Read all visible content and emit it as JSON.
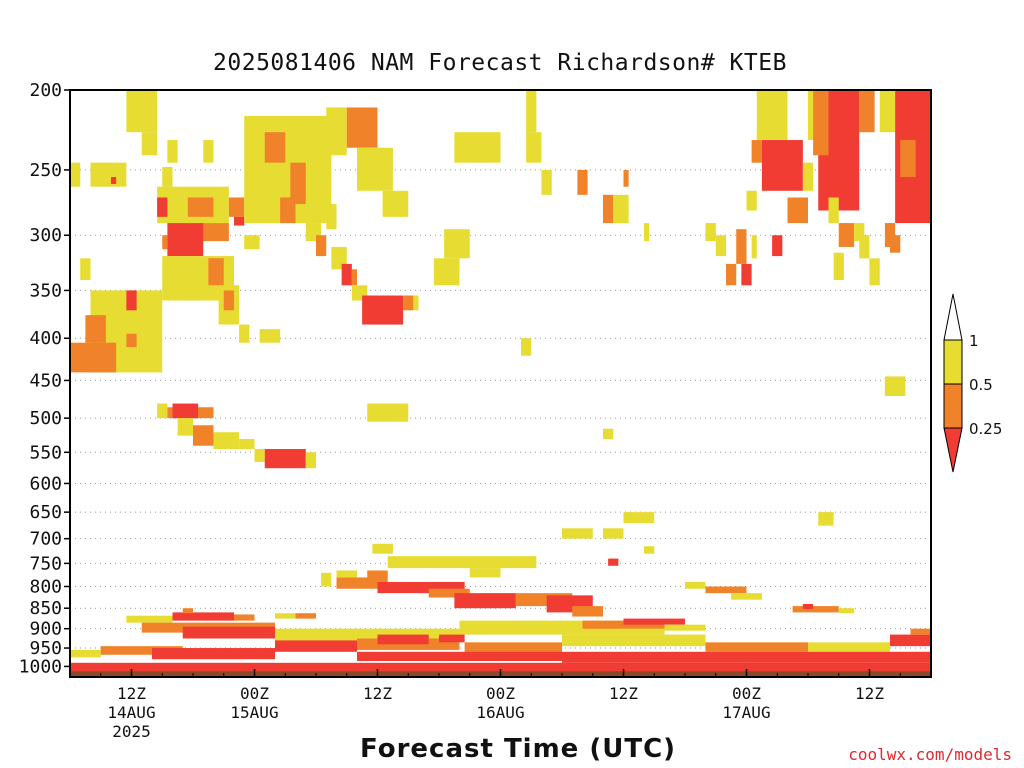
{
  "chart_data": {
    "type": "heatmap",
    "title": "2025081406 NAM Forecast Richardson# KTEB",
    "xlabel": "Forecast Time (UTC)",
    "ylabel": "",
    "x_unit": "forecast hour from 2025-08-14 06Z",
    "xlim": [
      0,
      84
    ],
    "y_unit": "pressure (hPa)",
    "ylim": [
      1030,
      200
    ],
    "y_scale": "log-pressure",
    "yticks": [
      200,
      250,
      300,
      350,
      400,
      450,
      500,
      550,
      600,
      650,
      700,
      750,
      800,
      850,
      900,
      950,
      1000
    ],
    "xticks": [
      {
        "hour": 6,
        "lines": [
          "12Z",
          "14AUG",
          "2025"
        ]
      },
      {
        "hour": 18,
        "lines": [
          "00Z",
          "15AUG"
        ]
      },
      {
        "hour": 30,
        "lines": [
          "12Z"
        ]
      },
      {
        "hour": 42,
        "lines": [
          "00Z",
          "16AUG"
        ]
      },
      {
        "hour": 54,
        "lines": [
          "12Z"
        ]
      },
      {
        "hour": 66,
        "lines": [
          "00Z",
          "17AUG"
        ]
      },
      {
        "hour": 78,
        "lines": [
          "12Z"
        ]
      }
    ],
    "grid": "horizontal dotted at y ticks",
    "legend": {
      "placement": "right",
      "labels": [
        "1",
        "0.5",
        "0.25"
      ],
      "bins": [
        {
          "range": "0.5-1",
          "color": "#e6dc32"
        },
        {
          "range": "0.25-0.5",
          "color": "#f0822a"
        },
        {
          "range": "<0.25",
          "color": "#f03c32"
        }
      ]
    },
    "colors": {
      "low": "#f03c32",
      "mid": "#f0822a",
      "high": "#e6dc32",
      "ground": "#8b4a25"
    },
    "ground_pressure": 1013,
    "cells": [
      {
        "t0": 5.5,
        "t1": 8.5,
        "p0": 200,
        "p1": 225,
        "bin": "high"
      },
      {
        "t0": 7.0,
        "t1": 8.5,
        "p0": 225,
        "p1": 240,
        "bin": "high"
      },
      {
        "t0": 9.5,
        "t1": 10.5,
        "p0": 230,
        "p1": 245,
        "bin": "high"
      },
      {
        "t0": 13.0,
        "t1": 14.0,
        "p0": 230,
        "p1": 245,
        "bin": "high"
      },
      {
        "t0": 0.0,
        "t1": 1.0,
        "p0": 245,
        "p1": 262,
        "bin": "high"
      },
      {
        "t0": 2.0,
        "t1": 5.5,
        "p0": 245,
        "p1": 262,
        "bin": "high"
      },
      {
        "t0": 9.0,
        "t1": 10.0,
        "p0": 248,
        "p1": 262,
        "bin": "high"
      },
      {
        "t0": 4.0,
        "t1": 4.5,
        "p0": 255,
        "p1": 260,
        "bin": "low"
      },
      {
        "t0": 8.5,
        "t1": 15.5,
        "p0": 262,
        "p1": 290,
        "bin": "high"
      },
      {
        "t0": 8.5,
        "t1": 9.5,
        "p0": 270,
        "p1": 285,
        "bin": "low"
      },
      {
        "t0": 11.5,
        "t1": 14.0,
        "p0": 270,
        "p1": 285,
        "bin": "mid"
      },
      {
        "t0": 15.5,
        "t1": 17.0,
        "p0": 270,
        "p1": 285,
        "bin": "mid"
      },
      {
        "t0": 16.0,
        "t1": 17.0,
        "p0": 285,
        "p1": 292,
        "bin": "low"
      },
      {
        "t0": 12.5,
        "t1": 15.5,
        "p0": 290,
        "p1": 305,
        "bin": "mid"
      },
      {
        "t0": 9.0,
        "t1": 9.5,
        "p0": 300,
        "p1": 312,
        "bin": "mid"
      },
      {
        "t0": 9.5,
        "t1": 13.0,
        "p0": 290,
        "p1": 318,
        "bin": "low"
      },
      {
        "t0": 9.0,
        "t1": 16.0,
        "p0": 318,
        "p1": 360,
        "bin": "high"
      },
      {
        "t0": 13.5,
        "t1": 15.0,
        "p0": 320,
        "p1": 345,
        "bin": "mid"
      },
      {
        "t0": 14.5,
        "t1": 16.5,
        "p0": 345,
        "p1": 385,
        "bin": "high"
      },
      {
        "t0": 15.0,
        "t1": 16.0,
        "p0": 350,
        "p1": 370,
        "bin": "mid"
      },
      {
        "t0": 17.0,
        "t1": 18.5,
        "p0": 300,
        "p1": 312,
        "bin": "high"
      },
      {
        "t0": 2.0,
        "t1": 9.0,
        "p0": 350,
        "p1": 440,
        "bin": "high"
      },
      {
        "t0": 1.5,
        "t1": 3.5,
        "p0": 375,
        "p1": 405,
        "bin": "mid"
      },
      {
        "t0": 0.0,
        "t1": 4.5,
        "p0": 405,
        "p1": 440,
        "bin": "mid"
      },
      {
        "t0": 5.5,
        "t1": 6.5,
        "p0": 350,
        "p1": 370,
        "bin": "low"
      },
      {
        "t0": 5.5,
        "t1": 6.5,
        "p0": 395,
        "p1": 410,
        "bin": "mid"
      },
      {
        "t0": 1.0,
        "t1": 2.0,
        "p0": 320,
        "p1": 340,
        "bin": "high"
      },
      {
        "t0": 18.5,
        "t1": 20.5,
        "p0": 390,
        "p1": 405,
        "bin": "high"
      },
      {
        "t0": 16.5,
        "t1": 17.5,
        "p0": 385,
        "p1": 405,
        "bin": "high"
      },
      {
        "t0": 17.0,
        "t1": 25.5,
        "p0": 215,
        "p1": 290,
        "bin": "high"
      },
      {
        "t0": 19.0,
        "t1": 21.0,
        "p0": 225,
        "p1": 245,
        "bin": "mid"
      },
      {
        "t0": 21.5,
        "t1": 23.0,
        "p0": 245,
        "p1": 275,
        "bin": "mid"
      },
      {
        "t0": 20.5,
        "t1": 22.0,
        "p0": 270,
        "p1": 290,
        "bin": "mid"
      },
      {
        "t0": 23.0,
        "t1": 24.5,
        "p0": 290,
        "p1": 305,
        "bin": "high"
      },
      {
        "t0": 24.0,
        "t1": 25.0,
        "p0": 300,
        "p1": 318,
        "bin": "mid"
      },
      {
        "t0": 25.0,
        "t1": 26.0,
        "p0": 275,
        "p1": 295,
        "bin": "high"
      },
      {
        "t0": 25.0,
        "t1": 27.0,
        "p0": 210,
        "p1": 240,
        "bin": "high"
      },
      {
        "t0": 27.0,
        "t1": 30.0,
        "p0": 210,
        "p1": 235,
        "bin": "mid"
      },
      {
        "t0": 28.0,
        "t1": 31.5,
        "p0": 235,
        "p1": 265,
        "bin": "high"
      },
      {
        "t0": 30.5,
        "t1": 33.0,
        "p0": 265,
        "p1": 285,
        "bin": "high"
      },
      {
        "t0": 25.5,
        "t1": 27.0,
        "p0": 310,
        "p1": 330,
        "bin": "high"
      },
      {
        "t0": 26.5,
        "t1": 27.5,
        "p0": 325,
        "p1": 345,
        "bin": "low"
      },
      {
        "t0": 27.5,
        "t1": 28.0,
        "p0": 330,
        "p1": 345,
        "bin": "mid"
      },
      {
        "t0": 27.5,
        "t1": 29.0,
        "p0": 345,
        "p1": 360,
        "bin": "high"
      },
      {
        "t0": 28.5,
        "t1": 32.5,
        "p0": 355,
        "p1": 385,
        "bin": "low"
      },
      {
        "t0": 32.5,
        "t1": 33.5,
        "p0": 355,
        "p1": 370,
        "bin": "mid"
      },
      {
        "t0": 33.5,
        "t1": 34.0,
        "p0": 355,
        "p1": 370,
        "bin": "high"
      },
      {
        "t0": 35.5,
        "t1": 38.0,
        "p0": 320,
        "p1": 345,
        "bin": "high"
      },
      {
        "t0": 36.5,
        "t1": 39.0,
        "p0": 295,
        "p1": 320,
        "bin": "high"
      },
      {
        "t0": 37.5,
        "t1": 42.0,
        "p0": 225,
        "p1": 245,
        "bin": "high"
      },
      {
        "t0": 44.5,
        "t1": 45.5,
        "p0": 200,
        "p1": 225,
        "bin": "high"
      },
      {
        "t0": 44.5,
        "t1": 46.0,
        "p0": 225,
        "p1": 245,
        "bin": "high"
      },
      {
        "t0": 46.0,
        "t1": 47.0,
        "p0": 250,
        "p1": 268,
        "bin": "high"
      },
      {
        "t0": 49.5,
        "t1": 50.5,
        "p0": 250,
        "p1": 268,
        "bin": "mid"
      },
      {
        "t0": 52.0,
        "t1": 53.0,
        "p0": 268,
        "p1": 290,
        "bin": "mid"
      },
      {
        "t0": 53.0,
        "t1": 54.5,
        "p0": 268,
        "p1": 290,
        "bin": "high"
      },
      {
        "t0": 54.0,
        "t1": 54.5,
        "p0": 250,
        "p1": 262,
        "bin": "mid"
      },
      {
        "t0": 56.0,
        "t1": 56.5,
        "p0": 290,
        "p1": 305,
        "bin": "high"
      },
      {
        "t0": 44.0,
        "t1": 45.0,
        "p0": 400,
        "p1": 420,
        "bin": "high"
      },
      {
        "t0": 8.5,
        "t1": 9.5,
        "p0": 480,
        "p1": 500,
        "bin": "high"
      },
      {
        "t0": 9.5,
        "t1": 14.0,
        "p0": 485,
        "p1": 500,
        "bin": "mid"
      },
      {
        "t0": 10.0,
        "t1": 12.5,
        "p0": 480,
        "p1": 500,
        "bin": "low"
      },
      {
        "t0": 10.5,
        "t1": 12.0,
        "p0": 500,
        "p1": 525,
        "bin": "high"
      },
      {
        "t0": 12.0,
        "t1": 14.0,
        "p0": 510,
        "p1": 540,
        "bin": "mid"
      },
      {
        "t0": 14.0,
        "t1": 16.5,
        "p0": 520,
        "p1": 545,
        "bin": "high"
      },
      {
        "t0": 16.5,
        "t1": 18.0,
        "p0": 530,
        "p1": 545,
        "bin": "high"
      },
      {
        "t0": 18.0,
        "t1": 19.0,
        "p0": 545,
        "p1": 565,
        "bin": "high"
      },
      {
        "t0": 19.0,
        "t1": 23.0,
        "p0": 545,
        "p1": 575,
        "bin": "low"
      },
      {
        "t0": 23.0,
        "t1": 24.0,
        "p0": 550,
        "p1": 575,
        "bin": "high"
      },
      {
        "t0": 29.0,
        "t1": 33.0,
        "p0": 480,
        "p1": 505,
        "bin": "high"
      },
      {
        "t0": 52.0,
        "t1": 53.0,
        "p0": 515,
        "p1": 530,
        "bin": "high"
      },
      {
        "t0": 73.0,
        "t1": 77.0,
        "p0": 200,
        "p1": 280,
        "bin": "low"
      },
      {
        "t0": 72.0,
        "t1": 73.5,
        "p0": 200,
        "p1": 230,
        "bin": "high"
      },
      {
        "t0": 77.0,
        "t1": 78.5,
        "p0": 200,
        "p1": 225,
        "bin": "mid"
      },
      {
        "t0": 79.0,
        "t1": 80.5,
        "p0": 200,
        "p1": 225,
        "bin": "high"
      },
      {
        "t0": 80.5,
        "t1": 84.0,
        "p0": 200,
        "p1": 290,
        "bin": "low"
      },
      {
        "t0": 81.0,
        "t1": 82.5,
        "p0": 230,
        "p1": 255,
        "bin": "mid"
      },
      {
        "t0": 75.0,
        "t1": 76.5,
        "p0": 290,
        "p1": 310,
        "bin": "mid"
      },
      {
        "t0": 76.5,
        "t1": 77.5,
        "p0": 290,
        "p1": 305,
        "bin": "high"
      },
      {
        "t0": 79.5,
        "t1": 80.5,
        "p0": 290,
        "p1": 310,
        "bin": "mid"
      },
      {
        "t0": 77.0,
        "t1": 78.0,
        "p0": 300,
        "p1": 320,
        "bin": "high"
      },
      {
        "t0": 67.0,
        "t1": 70.0,
        "p0": 200,
        "p1": 230,
        "bin": "high"
      },
      {
        "t0": 66.5,
        "t1": 67.5,
        "p0": 230,
        "p1": 245,
        "bin": "mid"
      },
      {
        "t0": 67.5,
        "t1": 71.5,
        "p0": 230,
        "p1": 265,
        "bin": "low"
      },
      {
        "t0": 71.5,
        "t1": 72.5,
        "p0": 245,
        "p1": 265,
        "bin": "high"
      },
      {
        "t0": 66.0,
        "t1": 67.0,
        "p0": 265,
        "p1": 280,
        "bin": "high"
      },
      {
        "t0": 70.0,
        "t1": 72.0,
        "p0": 270,
        "p1": 290,
        "bin": "mid"
      },
      {
        "t0": 72.5,
        "t1": 74.0,
        "p0": 200,
        "p1": 240,
        "bin": "mid"
      },
      {
        "t0": 74.0,
        "t1": 75.0,
        "p0": 270,
        "p1": 290,
        "bin": "high"
      },
      {
        "t0": 68.5,
        "t1": 69.5,
        "p0": 300,
        "p1": 318,
        "bin": "low"
      },
      {
        "t0": 63.0,
        "t1": 64.0,
        "p0": 300,
        "p1": 318,
        "bin": "high"
      },
      {
        "t0": 64.0,
        "t1": 65.0,
        "p0": 325,
        "p1": 345,
        "bin": "mid"
      },
      {
        "t0": 65.5,
        "t1": 66.5,
        "p0": 325,
        "p1": 345,
        "bin": "low"
      },
      {
        "t0": 65.0,
        "t1": 66.0,
        "p0": 295,
        "p1": 325,
        "bin": "mid"
      },
      {
        "t0": 66.5,
        "t1": 67.0,
        "p0": 300,
        "p1": 320,
        "bin": "high"
      },
      {
        "t0": 62.0,
        "t1": 63.0,
        "p0": 290,
        "p1": 305,
        "bin": "high"
      },
      {
        "t0": 74.5,
        "t1": 75.5,
        "p0": 315,
        "p1": 340,
        "bin": "high"
      },
      {
        "t0": 78.0,
        "t1": 79.0,
        "p0": 320,
        "p1": 345,
        "bin": "high"
      },
      {
        "t0": 80.0,
        "t1": 81.0,
        "p0": 300,
        "p1": 315,
        "bin": "mid"
      },
      {
        "t0": 79.5,
        "t1": 81.5,
        "p0": 445,
        "p1": 470,
        "bin": "high"
      },
      {
        "t0": 73.0,
        "t1": 74.5,
        "p0": 650,
        "p1": 675,
        "bin": "high"
      },
      {
        "t0": 48.0,
        "t1": 51.0,
        "p0": 680,
        "p1": 700,
        "bin": "high"
      },
      {
        "t0": 52.0,
        "t1": 54.0,
        "p0": 680,
        "p1": 700,
        "bin": "high"
      },
      {
        "t0": 54.0,
        "t1": 57.0,
        "p0": 650,
        "p1": 670,
        "bin": "high"
      },
      {
        "t0": 56.0,
        "t1": 57.0,
        "p0": 715,
        "p1": 730,
        "bin": "high"
      },
      {
        "t0": 29.5,
        "t1": 31.5,
        "p0": 710,
        "p1": 730,
        "bin": "high"
      },
      {
        "t0": 31.0,
        "t1": 45.5,
        "p0": 735,
        "p1": 760,
        "bin": "high"
      },
      {
        "t0": 39.0,
        "t1": 42.0,
        "p0": 760,
        "p1": 780,
        "bin": "high"
      },
      {
        "t0": 52.5,
        "t1": 53.5,
        "p0": 740,
        "p1": 755,
        "bin": "low"
      },
      {
        "t0": 24.5,
        "t1": 25.5,
        "p0": 770,
        "p1": 800,
        "bin": "high"
      },
      {
        "t0": 26.0,
        "t1": 30.0,
        "p0": 780,
        "p1": 805,
        "bin": "mid"
      },
      {
        "t0": 29.0,
        "t1": 31.0,
        "p0": 765,
        "p1": 790,
        "bin": "mid"
      },
      {
        "t0": 30.0,
        "t1": 38.5,
        "p0": 790,
        "p1": 815,
        "bin": "low"
      },
      {
        "t0": 26.0,
        "t1": 28.0,
        "p0": 765,
        "p1": 780,
        "bin": "high"
      },
      {
        "t0": 35.0,
        "t1": 39.0,
        "p0": 805,
        "p1": 825,
        "bin": "mid"
      },
      {
        "t0": 37.5,
        "t1": 43.5,
        "p0": 815,
        "p1": 850,
        "bin": "low"
      },
      {
        "t0": 43.5,
        "t1": 49.0,
        "p0": 815,
        "p1": 845,
        "bin": "mid"
      },
      {
        "t0": 46.5,
        "t1": 51.0,
        "p0": 820,
        "p1": 860,
        "bin": "low"
      },
      {
        "t0": 49.0,
        "t1": 52.0,
        "p0": 845,
        "p1": 870,
        "bin": "mid"
      },
      {
        "t0": 60.0,
        "t1": 62.0,
        "p0": 790,
        "p1": 805,
        "bin": "high"
      },
      {
        "t0": 62.0,
        "t1": 66.0,
        "p0": 800,
        "p1": 815,
        "bin": "mid"
      },
      {
        "t0": 64.5,
        "t1": 67.5,
        "p0": 815,
        "p1": 830,
        "bin": "high"
      },
      {
        "t0": 70.5,
        "t1": 75.0,
        "p0": 845,
        "p1": 860,
        "bin": "mid"
      },
      {
        "t0": 71.5,
        "t1": 72.5,
        "p0": 840,
        "p1": 852,
        "bin": "low"
      },
      {
        "t0": 75.0,
        "t1": 76.5,
        "p0": 850,
        "p1": 862,
        "bin": "high"
      },
      {
        "t0": 5.5,
        "t1": 10.0,
        "p0": 868,
        "p1": 885,
        "bin": "high"
      },
      {
        "t0": 10.0,
        "t1": 16.0,
        "p0": 860,
        "p1": 880,
        "bin": "low"
      },
      {
        "t0": 11.0,
        "t1": 12.0,
        "p0": 850,
        "p1": 862,
        "bin": "mid"
      },
      {
        "t0": 16.0,
        "t1": 18.0,
        "p0": 865,
        "p1": 880,
        "bin": "mid"
      },
      {
        "t0": 20.0,
        "t1": 22.0,
        "p0": 862,
        "p1": 875,
        "bin": "high"
      },
      {
        "t0": 22.0,
        "t1": 24.0,
        "p0": 862,
        "p1": 875,
        "bin": "mid"
      },
      {
        "t0": 7.0,
        "t1": 20.0,
        "p0": 885,
        "p1": 910,
        "bin": "mid"
      },
      {
        "t0": 11.0,
        "t1": 20.0,
        "p0": 895,
        "p1": 925,
        "bin": "low"
      },
      {
        "t0": 20.0,
        "t1": 38.0,
        "p0": 900,
        "p1": 935,
        "bin": "high"
      },
      {
        "t0": 38.0,
        "t1": 58.0,
        "p0": 880,
        "p1": 915,
        "bin": "high"
      },
      {
        "t0": 50.0,
        "t1": 58.0,
        "p0": 880,
        "p1": 900,
        "bin": "mid"
      },
      {
        "t0": 54.0,
        "t1": 60.0,
        "p0": 875,
        "p1": 890,
        "bin": "low"
      },
      {
        "t0": 58.0,
        "t1": 62.0,
        "p0": 890,
        "p1": 905,
        "bin": "high"
      },
      {
        "t0": 20.0,
        "t1": 28.0,
        "p0": 930,
        "p1": 960,
        "bin": "low"
      },
      {
        "t0": 28.0,
        "t1": 38.0,
        "p0": 925,
        "p1": 955,
        "bin": "mid"
      },
      {
        "t0": 30.0,
        "t1": 35.0,
        "p0": 915,
        "p1": 940,
        "bin": "low"
      },
      {
        "t0": 36.0,
        "t1": 38.5,
        "p0": 915,
        "p1": 935,
        "bin": "low"
      },
      {
        "t0": 38.5,
        "t1": 48.0,
        "p0": 935,
        "p1": 965,
        "bin": "mid"
      },
      {
        "t0": 48.0,
        "t1": 62.0,
        "p0": 915,
        "p1": 945,
        "bin": "high"
      },
      {
        "t0": 62.0,
        "t1": 72.0,
        "p0": 935,
        "p1": 960,
        "bin": "mid"
      },
      {
        "t0": 72.0,
        "t1": 80.0,
        "p0": 935,
        "p1": 960,
        "bin": "high"
      },
      {
        "t0": 80.0,
        "t1": 84.0,
        "p0": 915,
        "p1": 945,
        "bin": "low"
      },
      {
        "t0": 82.0,
        "t1": 84.0,
        "p0": 900,
        "p1": 915,
        "bin": "mid"
      },
      {
        "t0": 0.0,
        "t1": 3.0,
        "p0": 955,
        "p1": 975,
        "bin": "high"
      },
      {
        "t0": 3.0,
        "t1": 11.0,
        "p0": 945,
        "p1": 968,
        "bin": "mid"
      },
      {
        "t0": 8.0,
        "t1": 20.0,
        "p0": 950,
        "p1": 980,
        "bin": "low"
      },
      {
        "t0": 28.0,
        "t1": 48.0,
        "p0": 960,
        "p1": 985,
        "bin": "low"
      },
      {
        "t0": 48.0,
        "t1": 84.0,
        "p0": 960,
        "p1": 990,
        "bin": "low"
      },
      {
        "t0": 0.0,
        "t1": 84.0,
        "p0": 990,
        "p1": 1013,
        "bin": "low"
      }
    ]
  },
  "credit": "coolwx.com/models"
}
